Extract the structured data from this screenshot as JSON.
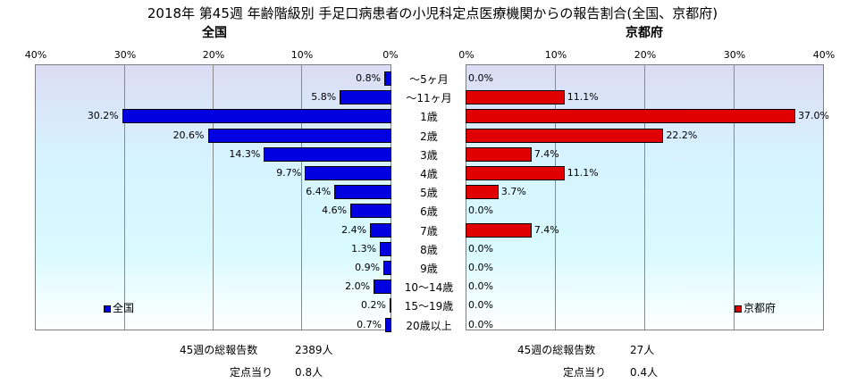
{
  "title": "2018年 第45週 年齢階級別 手足口病患者の小児科定点医療機関からの報告割合(全国、京都府)",
  "left_panel": {
    "title": "全国",
    "legend": "全国",
    "color": "#0000e0",
    "ticks": [
      "40%",
      "30%",
      "20%",
      "10%",
      "0%"
    ],
    "total_label": "45週の総報告数",
    "total_value": "2389人",
    "per_label": "定点当り",
    "per_value": "0.8人"
  },
  "right_panel": {
    "title": "京都府",
    "legend": "京都府",
    "color": "#e00000",
    "ticks": [
      "0%",
      "10%",
      "20%",
      "30%",
      "40%"
    ],
    "total_label": "45週の総報告数",
    "total_value": "27人",
    "per_label": "定点当り",
    "per_value": "0.4人"
  },
  "chart_data": {
    "type": "bar",
    "categories": [
      "〜5ヶ月",
      "〜11ヶ月",
      "1歳",
      "2歳",
      "3歳",
      "4歳",
      "5歳",
      "6歳",
      "7歳",
      "8歳",
      "9歳",
      "10〜14歳",
      "15〜19歳",
      "20歳以上"
    ],
    "xlim": [
      0,
      40
    ],
    "series": [
      {
        "name": "全国",
        "values": [
          0.8,
          5.8,
          30.2,
          20.6,
          14.3,
          9.7,
          6.4,
          4.6,
          2.4,
          1.3,
          0.9,
          2.0,
          0.2,
          0.7
        ],
        "labels": [
          "0.8%",
          "5.8%",
          "30.2%",
          "20.6%",
          "14.3%",
          "9.7%",
          "6.4%",
          "4.6%",
          "2.4%",
          "1.3%",
          "0.9%",
          "2.0%",
          "0.2%",
          "0.7%"
        ]
      },
      {
        "name": "京都府",
        "values": [
          0.0,
          11.1,
          37.0,
          22.2,
          7.4,
          11.1,
          3.7,
          0.0,
          7.4,
          0.0,
          0.0,
          0.0,
          0.0,
          0.0
        ],
        "labels": [
          "0.0%",
          "11.1%",
          "37.0%",
          "22.2%",
          "7.4%",
          "11.1%",
          "3.7%",
          "0.0%",
          "7.4%",
          "0.0%",
          "0.0%",
          "0.0%",
          "0.0%",
          "0.0%"
        ]
      }
    ]
  }
}
